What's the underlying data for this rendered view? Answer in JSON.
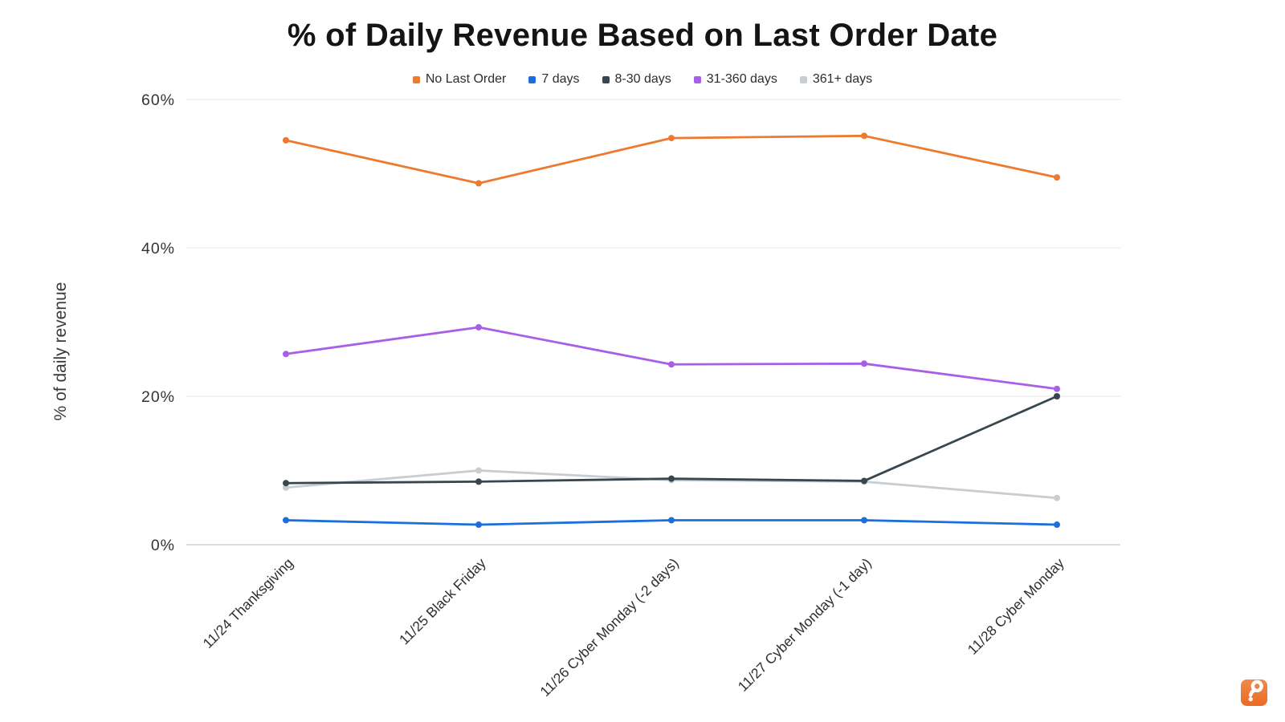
{
  "header": {
    "title": "% of Daily Revenue Based on Last Order Date"
  },
  "colors": {
    "background": "#ffffff",
    "gridline": "#ececec",
    "baseline": "#cfcfcf",
    "tick_text": "#333333",
    "logo_orange": "#ED7332"
  },
  "chart_data": {
    "type": "line",
    "title": "% of Daily Revenue Based on Last Order Date",
    "xlabel": "",
    "ylabel": "% of daily revenue",
    "ylim": [
      0,
      60
    ],
    "grid": true,
    "legend_position": "top",
    "y_ticks": [
      {
        "value": 0,
        "label": "0%"
      },
      {
        "value": 20,
        "label": "20%"
      },
      {
        "value": 40,
        "label": "40%"
      },
      {
        "value": 60,
        "label": "60%"
      }
    ],
    "x_categories": [
      "11/24 Thanksgiving",
      "11/25 Black Friday",
      "11/26 Cyber Monday (-2 days)",
      "11/27 Cyber Monday (-1 day)",
      "11/28 Cyber Monday"
    ],
    "series": [
      {
        "name": "No Last Order",
        "color": "#ED7A2F",
        "values": [
          54.5,
          48.7,
          54.8,
          55.1,
          49.5
        ]
      },
      {
        "name": "7 days",
        "color": "#1B6FDB",
        "values": [
          3.3,
          2.7,
          3.3,
          3.3,
          2.7
        ]
      },
      {
        "name": "8-30 days",
        "color": "#37474F",
        "values": [
          8.3,
          8.5,
          8.9,
          8.6,
          20.0
        ]
      },
      {
        "name": "31-360 days",
        "color": "#A85FE8",
        "values": [
          25.7,
          29.3,
          24.3,
          24.4,
          21.0
        ]
      },
      {
        "name": "361+ days",
        "color": "#C8CDD2",
        "values": [
          7.7,
          10.0,
          8.7,
          8.5,
          6.3
        ]
      }
    ]
  }
}
